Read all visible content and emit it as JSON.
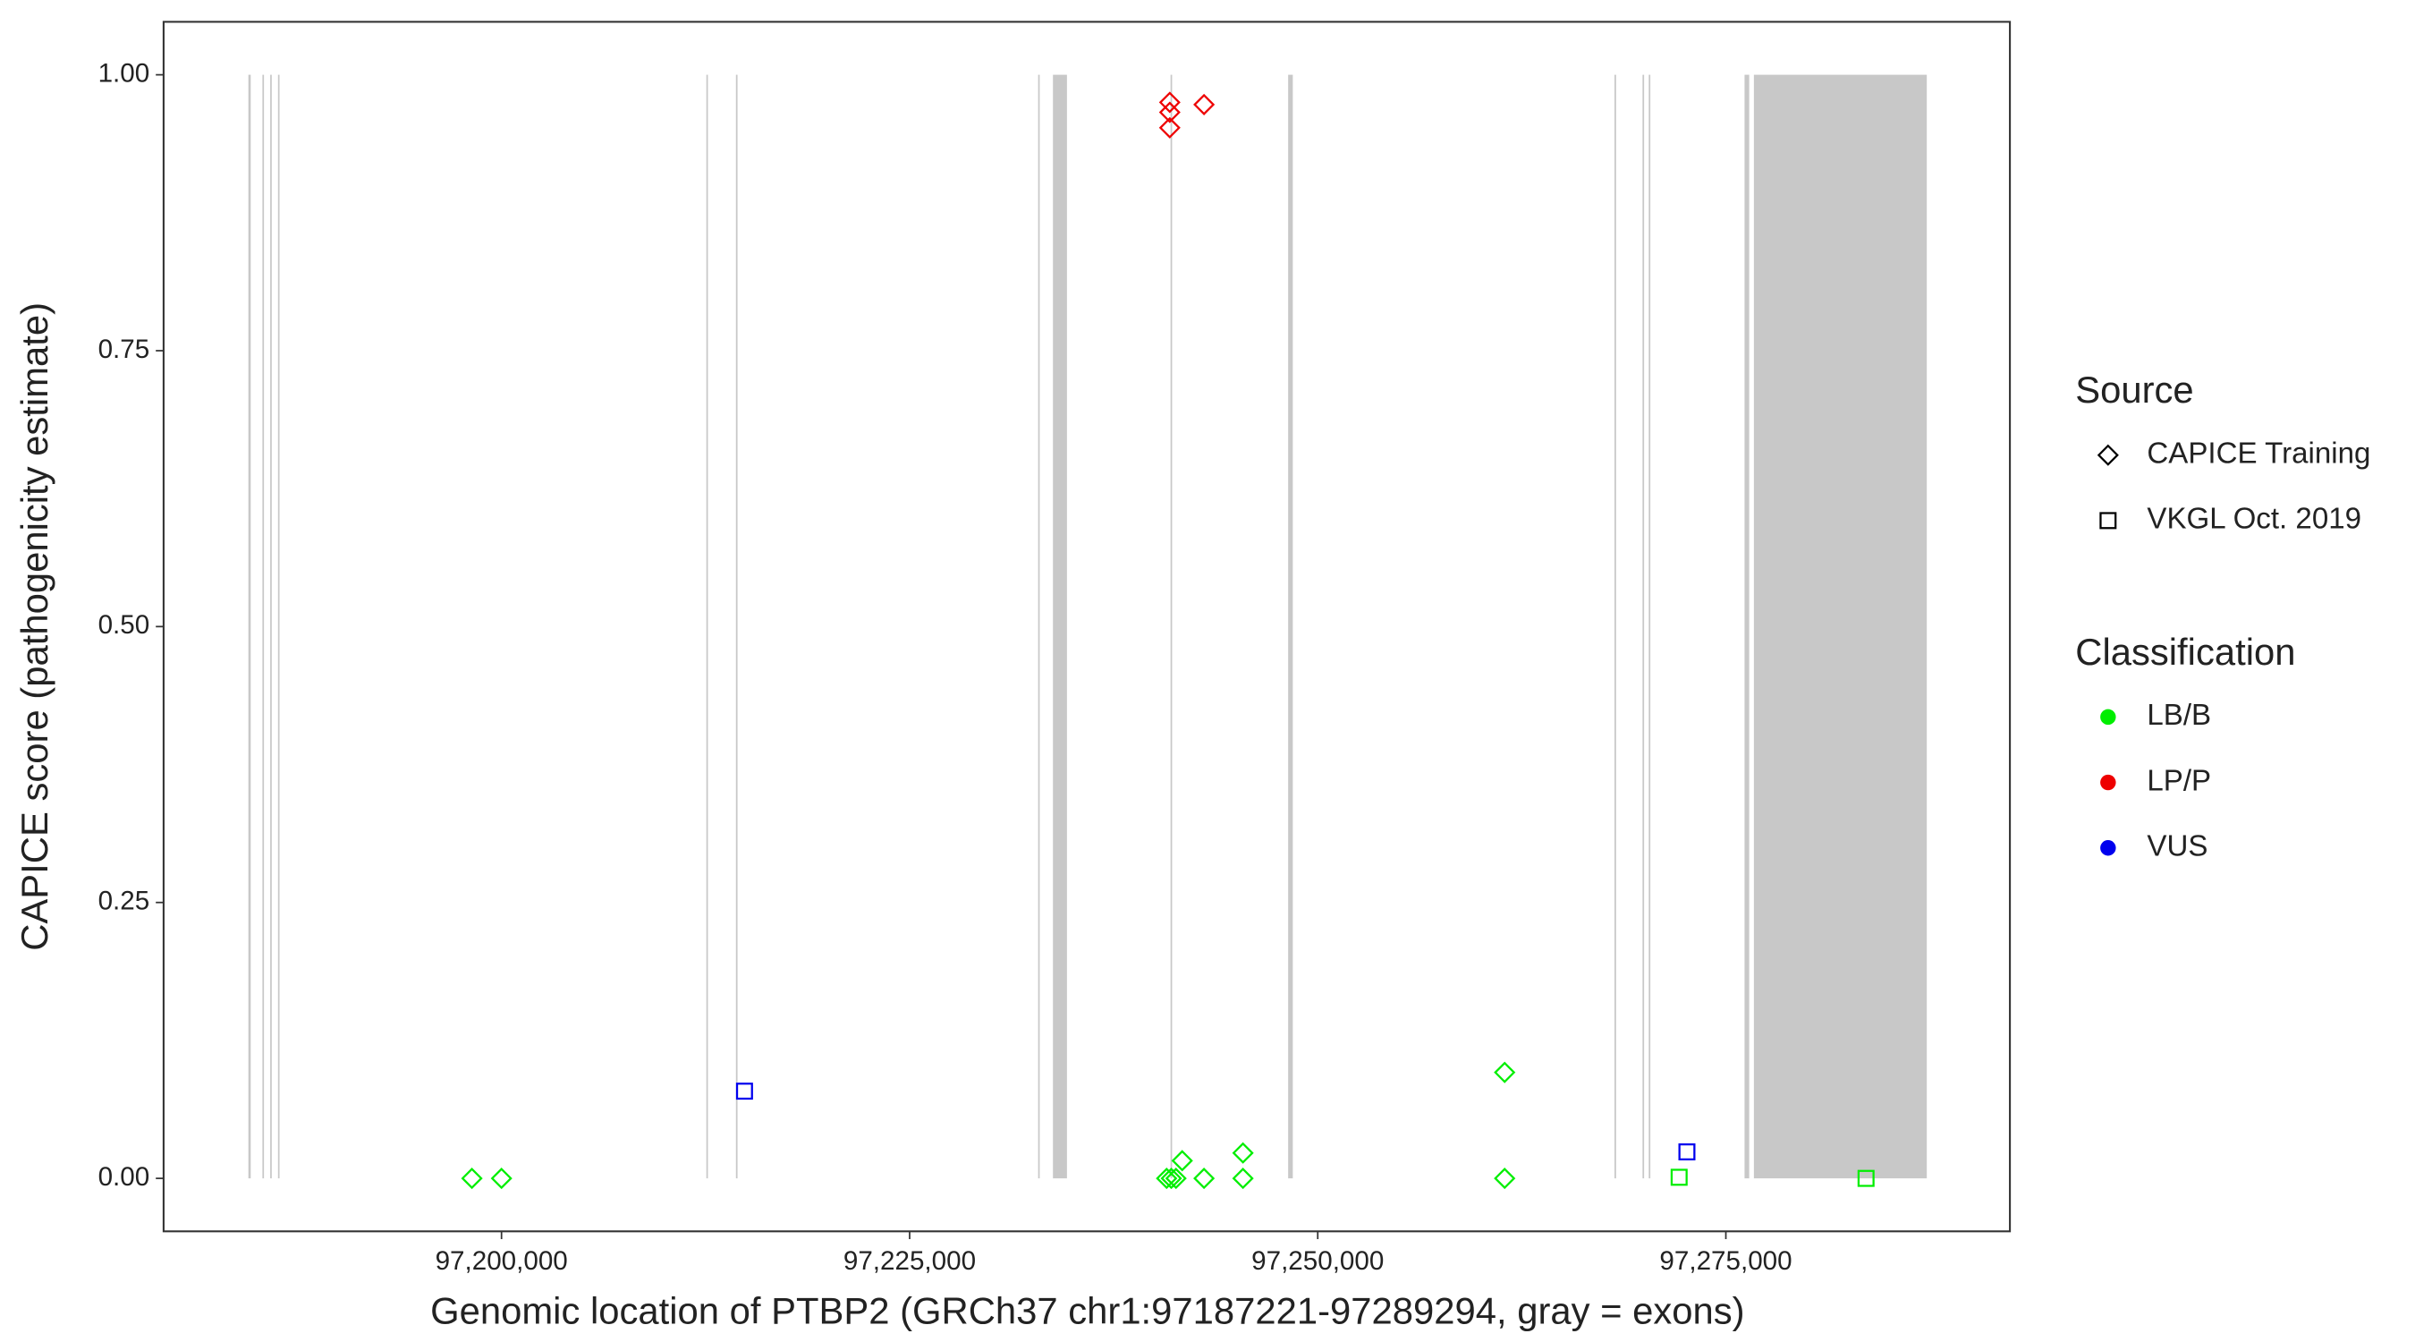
{
  "chart_data": {
    "type": "scatter",
    "x_label": "Genomic location of PTBP2 (GRCh37 chr1:97187221-97289294, gray = exons)",
    "y_label": "CAPICE score (pathogenicity estimate)",
    "xlim": [
      97179300,
      97292400
    ],
    "ylim": [
      -0.048,
      1.048
    ],
    "xticks": [
      {
        "value": 97200000,
        "label": "97,200,000"
      },
      {
        "value": 97225000,
        "label": "97,225,000"
      },
      {
        "value": 97250000,
        "label": "97,250,000"
      },
      {
        "value": 97275000,
        "label": "97,275,000"
      }
    ],
    "yticks": [
      {
        "value": 0,
        "label": "0.00"
      },
      {
        "value": 0.25,
        "label": "0.25"
      },
      {
        "value": 0.5,
        "label": "0.50"
      },
      {
        "value": 0.75,
        "label": "0.75"
      },
      {
        "value": 1,
        "label": "1.00"
      }
    ],
    "exon_color": "#c8c8c8",
    "exons": [
      [
        97184494,
        97184637
      ],
      [
        97185353,
        97185448
      ],
      [
        97185830,
        97185926
      ],
      [
        97186307,
        97186403
      ],
      [
        97212548,
        97212644
      ],
      [
        97214361,
        97214457
      ],
      [
        97232873,
        97232969
      ],
      [
        97233779,
        97234638
      ],
      [
        97240983,
        97241079
      ],
      [
        97248187,
        97248473
      ],
      [
        97268178,
        97268274
      ],
      [
        97269896,
        97269992
      ],
      [
        97270277,
        97270373
      ],
      [
        97276145,
        97276431
      ],
      [
        97276717,
        97287309
      ]
    ],
    "legend_source": {
      "title": "Source",
      "labels": [
        "CAPICE Training",
        "VKGL Oct. 2019"
      ],
      "shapes": [
        "diamond",
        "square"
      ]
    },
    "legend_classification": {
      "title": "Classification",
      "labels": [
        "LB/B",
        "LP/P",
        "VUS"
      ],
      "colors": [
        "#00ee00",
        "#ee0000",
        "#0000ee"
      ]
    },
    "series": [
      {
        "shape": "diamond",
        "color": "#00ee00",
        "x": [
          97198187,
          97200000,
          97240744,
          97241030,
          97241317,
          97241698,
          97243034,
          97245420,
          97245420,
          97261450,
          97261450
        ],
        "values": [
          0,
          0,
          0,
          0,
          0,
          0.016,
          0,
          0.023,
          0,
          0.096,
          0
        ]
      },
      {
        "shape": "diamond",
        "color": "#ee0000",
        "x": [
          97240935,
          97240935,
          97240935,
          97243034
        ],
        "values": [
          0.975,
          0.966,
          0.952,
          0.973
        ]
      },
      {
        "shape": "square",
        "color": "#0000ee",
        "x": [
          97214886,
          97272615
        ],
        "values": [
          0.079,
          0.024
        ]
      },
      {
        "shape": "square",
        "color": "#00ee00",
        "x": [
          97272138,
          97283588
        ],
        "values": [
          0.001,
          0
        ]
      }
    ]
  }
}
